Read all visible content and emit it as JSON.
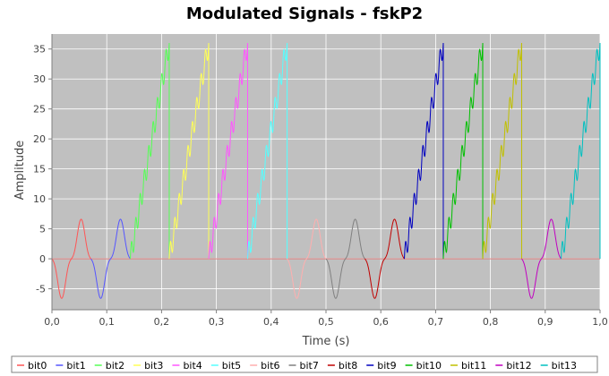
{
  "chart_data": {
    "type": "line",
    "title": "Modulated Signals - fskP2",
    "xlabel": "Time (s)",
    "ylabel": "Amplitude",
    "xlim": [
      0.0,
      1.0
    ],
    "ylim": [
      -8.5,
      37.5
    ],
    "xticks": [
      "0,0",
      "0,1",
      "0,2",
      "0,3",
      "0,4",
      "0,5",
      "0,6",
      "0,7",
      "0,8",
      "0,9",
      "1,0"
    ],
    "xtick_values": [
      0.0,
      0.1,
      0.2,
      0.3,
      0.4,
      0.5,
      0.6,
      0.7,
      0.8,
      0.9,
      1.0
    ],
    "yticks": [
      "-5",
      "0",
      "5",
      "10",
      "15",
      "20",
      "25",
      "30",
      "35"
    ],
    "ytick_values": [
      -5,
      0,
      5,
      10,
      15,
      20,
      25,
      30,
      35
    ],
    "grid": true,
    "legend_position": "bottom",
    "background": "#c0c0c0",
    "series": [
      {
        "name": "bit0",
        "color": "#ff5555",
        "x_start": 0.0,
        "x_end": 0.071,
        "kind": "sine"
      },
      {
        "name": "bit1",
        "color": "#5555ff",
        "x_start": 0.071,
        "x_end": 0.143,
        "kind": "sine"
      },
      {
        "name": "bit2",
        "color": "#55ff55",
        "x_start": 0.143,
        "x_end": 0.214,
        "kind": "ramp"
      },
      {
        "name": "bit3",
        "color": "#ffff55",
        "x_start": 0.214,
        "x_end": 0.286,
        "kind": "ramp"
      },
      {
        "name": "bit4",
        "color": "#ff55ff",
        "x_start": 0.286,
        "x_end": 0.357,
        "kind": "ramp"
      },
      {
        "name": "bit5",
        "color": "#55ffff",
        "x_start": 0.357,
        "x_end": 0.429,
        "kind": "ramp"
      },
      {
        "name": "bit6",
        "color": "#ffafaf",
        "x_start": 0.429,
        "x_end": 0.5,
        "kind": "sine"
      },
      {
        "name": "bit7",
        "color": "#808080",
        "x_start": 0.5,
        "x_end": 0.571,
        "kind": "sine"
      },
      {
        "name": "bit8",
        "color": "#c00000",
        "x_start": 0.571,
        "x_end": 0.643,
        "kind": "sine"
      },
      {
        "name": "bit9",
        "color": "#0000c0",
        "x_start": 0.643,
        "x_end": 0.714,
        "kind": "ramp"
      },
      {
        "name": "bit10",
        "color": "#00c000",
        "x_start": 0.714,
        "x_end": 0.786,
        "kind": "ramp"
      },
      {
        "name": "bit11",
        "color": "#c0c000",
        "x_start": 0.786,
        "x_end": 0.857,
        "kind": "ramp"
      },
      {
        "name": "bit12",
        "color": "#c000c0",
        "x_start": 0.857,
        "x_end": 0.929,
        "kind": "sine"
      },
      {
        "name": "bit13",
        "color": "#00c0c0",
        "x_start": 0.929,
        "x_end": 1.0,
        "kind": "ramp"
      }
    ]
  }
}
